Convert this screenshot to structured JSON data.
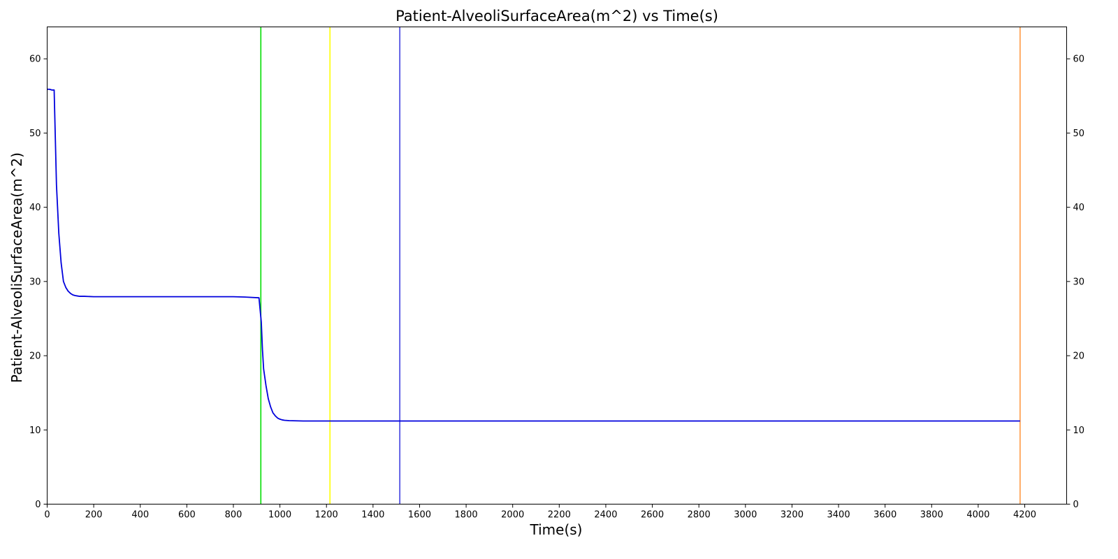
{
  "chart_data": {
    "type": "line",
    "title": "Patient-AlveoliSurfaceArea(m^2) vs Time(s)",
    "xlabel": "Time(s)",
    "ylabel": "Patient-AlveoliSurfaceArea(m^2)",
    "xlim": [
      0,
      4380
    ],
    "ylim": [
      0,
      64.3
    ],
    "xticks": [
      0,
      200,
      400,
      600,
      800,
      1000,
      1200,
      1400,
      1600,
      1800,
      2000,
      2200,
      2400,
      2600,
      2800,
      3000,
      3200,
      3400,
      3600,
      3800,
      4000,
      4200
    ],
    "yticks": [
      0,
      10,
      20,
      30,
      40,
      50,
      60
    ],
    "right_axis": true,
    "grid": false,
    "legend": "none",
    "series": [
      {
        "color": "#0000dd",
        "x": [
          0,
          10,
          20,
          30,
          40,
          50,
          60,
          70,
          80,
          90,
          100,
          110,
          120,
          130,
          140,
          160,
          200,
          300,
          400,
          500,
          600,
          700,
          800,
          850,
          910,
          920,
          925,
          930,
          940,
          950,
          960,
          970,
          980,
          990,
          1000,
          1010,
          1020,
          1040,
          1100,
          1200,
          1400,
          1600,
          1800,
          2000,
          2200,
          2400,
          2600,
          2800,
          3000,
          3200,
          3400,
          3600,
          3800,
          4000,
          4180
        ],
        "y": [
          55.9,
          55.9,
          55.8,
          55.8,
          43.0,
          36.5,
          32.5,
          30.0,
          29.2,
          28.7,
          28.4,
          28.2,
          28.1,
          28.05,
          28.0,
          28.0,
          27.95,
          27.95,
          27.95,
          27.95,
          27.95,
          27.95,
          27.95,
          27.9,
          27.8,
          24.5,
          20.8,
          18.2,
          16.0,
          14.2,
          13.1,
          12.3,
          11.9,
          11.6,
          11.45,
          11.35,
          11.3,
          11.25,
          11.2,
          11.2,
          11.2,
          11.2,
          11.2,
          11.2,
          11.2,
          11.2,
          11.2,
          11.2,
          11.2,
          11.2,
          11.2,
          11.2,
          11.2,
          11.2,
          11.2
        ]
      }
    ],
    "vlines": [
      {
        "x": 918,
        "color": "#00dd00"
      },
      {
        "x": 1215,
        "color": "#ffff00"
      },
      {
        "x": 1515,
        "color": "#4040e0"
      },
      {
        "x": 4180,
        "color": "#ff9944"
      }
    ]
  }
}
